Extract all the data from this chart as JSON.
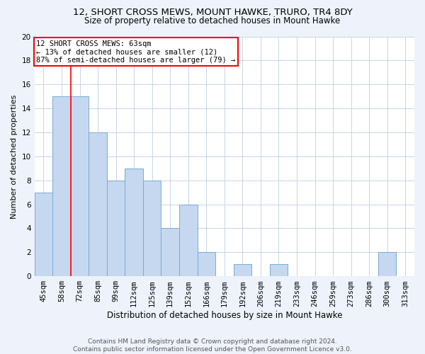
{
  "title": "12, SHORT CROSS MEWS, MOUNT HAWKE, TRURO, TR4 8DY",
  "subtitle": "Size of property relative to detached houses in Mount Hawke",
  "xlabel": "Distribution of detached houses by size in Mount Hawke",
  "ylabel": "Number of detached properties",
  "categories": [
    "45sqm",
    "58sqm",
    "72sqm",
    "85sqm",
    "99sqm",
    "112sqm",
    "125sqm",
    "139sqm",
    "152sqm",
    "166sqm",
    "179sqm",
    "192sqm",
    "206sqm",
    "219sqm",
    "233sqm",
    "246sqm",
    "259sqm",
    "273sqm",
    "286sqm",
    "300sqm",
    "313sqm"
  ],
  "values": [
    7,
    15,
    15,
    12,
    8,
    9,
    8,
    4,
    6,
    2,
    0,
    1,
    0,
    1,
    0,
    0,
    0,
    0,
    0,
    2,
    0
  ],
  "bar_color": "#c5d8f0",
  "bar_edge_color": "#7aaad4",
  "red_line_x": 1.5,
  "annotation_lines": [
    "12 SHORT CROSS MEWS: 63sqm",
    "← 13% of detached houses are smaller (12)",
    "87% of semi-detached houses are larger (79) →"
  ],
  "annotation_box_color": "white",
  "annotation_edge_color": "red",
  "ylim": [
    0,
    20
  ],
  "yticks": [
    0,
    2,
    4,
    6,
    8,
    10,
    12,
    14,
    16,
    18,
    20
  ],
  "footer_line1": "Contains HM Land Registry data © Crown copyright and database right 2024.",
  "footer_line2": "Contains public sector information licensed under the Open Government Licence v3.0.",
  "background_color": "#eef2fb",
  "plot_bg_color": "#ffffff",
  "grid_color": "#c8d4e8",
  "title_fontsize": 9.5,
  "subtitle_fontsize": 8.5,
  "xlabel_fontsize": 8.5,
  "ylabel_fontsize": 8,
  "tick_fontsize": 7.5,
  "annotation_fontsize": 7.5,
  "footer_fontsize": 6.5
}
